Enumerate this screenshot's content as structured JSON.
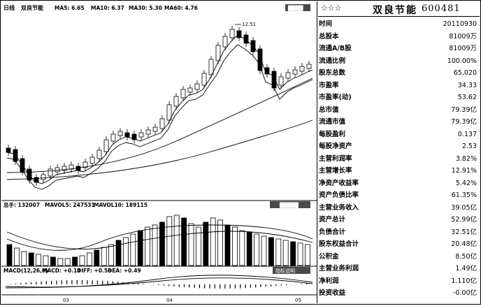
{
  "stock": {
    "stars": "☆☆☆",
    "name": "双良节能",
    "code": "600481"
  },
  "kline": {
    "period_label": "日线",
    "stock_name": "双良节能",
    "ma5": "MA5: 6.65",
    "ma10": "MA10: 6.37",
    "ma30": "MA30: 5.30",
    "ma60": "MA60: 4.76",
    "peak_label": "12.51",
    "tag_button": "████"
  },
  "volume": {
    "label": "总手: 132007",
    "mavol5": "MAVOL5: 247531",
    "mavol10": "MAVOL10: 189115",
    "tag_button": "█████"
  },
  "macd": {
    "label": "MACD(12,26,9)",
    "macd_val": "MACD: +0.14",
    "diff": "DIFF: +0.56",
    "dea": "DEA: +0.49",
    "tag_button": "指标说明"
  },
  "x_axis": [
    "03",
    "04",
    "05"
  ],
  "colors": {
    "line": "#000000",
    "button_bg": "#4a4a4a",
    "button_text": "#ffffff"
  },
  "fundamentals": [
    {
      "label": "时间",
      "value": "20110930"
    },
    {
      "label": "总股本",
      "value": "81009万"
    },
    {
      "label": "流通A/B股",
      "value": "81009万"
    },
    {
      "label": "流通比例",
      "value": "100.00%"
    },
    {
      "label": "股东总数",
      "value": "65,020"
    },
    {
      "label": "市盈率",
      "value": "34.33"
    },
    {
      "label": "市盈率(动)",
      "value": "53.62"
    },
    {
      "label": "总市值",
      "value": "79.39亿"
    },
    {
      "label": "流通市值",
      "value": "79.39亿"
    },
    {
      "label": "每股盈利",
      "value": "0.137"
    },
    {
      "label": "每股净资产",
      "value": "2.53"
    },
    {
      "label": "主营利润率",
      "value": "3.82%"
    },
    {
      "label": "主营增长率",
      "value": "12.91%"
    },
    {
      "label": "净资产收益率",
      "value": "5.42%"
    },
    {
      "label": "资产负债比率",
      "value": "61.35%"
    },
    {
      "label": "主营业务收入",
      "value": "39.05亿"
    },
    {
      "label": "资产总计",
      "value": "52.99亿"
    },
    {
      "label": "负债合计",
      "value": "32.51亿"
    },
    {
      "label": "股东权益合计",
      "value": "20.48亿"
    },
    {
      "label": "公积金",
      "value": "8.50亿"
    },
    {
      "label": "主营业务利润",
      "value": "1.49亿"
    },
    {
      "label": "净利润",
      "value": "1.110亿"
    },
    {
      "label": "投资收益",
      "value": "-0.00亿"
    }
  ]
}
